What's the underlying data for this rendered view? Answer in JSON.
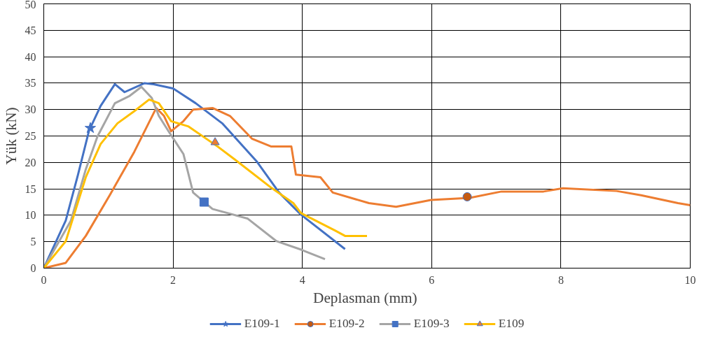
{
  "chart_data": {
    "type": "line",
    "xlabel": "Deplasman  (mm)",
    "ylabel": "Yük (kN)",
    "xlim": [
      0,
      10
    ],
    "ylim": [
      0,
      50
    ],
    "xticks": [
      0,
      2,
      4,
      6,
      8,
      10
    ],
    "yticks": [
      0,
      5,
      10,
      15,
      20,
      25,
      30,
      35,
      40,
      45,
      50
    ],
    "grid": true,
    "legend": "bottom",
    "marker": "none",
    "series": [
      {
        "name": "E109-1",
        "color": "#4472c4",
        "x": [
          0,
          0.34,
          0.53,
          0.7,
          0.88,
          1.1,
          1.25,
          1.56,
          1.7,
          2.0,
          2.35,
          2.76,
          3.3,
          3.64,
          3.98,
          4.66
        ],
        "values": [
          0,
          9,
          17.7,
          26,
          30.7,
          34.8,
          33.3,
          35,
          34.8,
          34,
          31.2,
          27.4,
          20.1,
          14.3,
          10.1,
          3.6
        ]
      },
      {
        "name": "E109-2",
        "color": "#ed7d31",
        "x": [
          0,
          0.34,
          0.65,
          1.02,
          1.4,
          1.74,
          1.86,
          1.97,
          2.16,
          2.31,
          2.61,
          2.88,
          3.22,
          3.52,
          3.83,
          3.9,
          4.28,
          4.47,
          5.03,
          5.45,
          5.99,
          6.59,
          7.08,
          7.73,
          8.03,
          8.86,
          9.24,
          9.81,
          10
        ],
        "values": [
          0,
          1,
          6.1,
          13.8,
          22,
          30.3,
          28.8,
          25.9,
          27.8,
          30,
          30.3,
          28.8,
          24.5,
          23,
          23,
          17.7,
          17.2,
          14.3,
          12.3,
          11.6,
          12.9,
          13.3,
          14.5,
          14.5,
          15.1,
          14.6,
          13.8,
          12.3,
          11.9
        ]
      },
      {
        "name": "E109-3",
        "color": "#a5a5a5",
        "x": [
          0,
          0.42,
          0.65,
          0.83,
          1.1,
          1.33,
          1.51,
          1.67,
          1.78,
          1.93,
          2.16,
          2.31,
          2.61,
          3.15,
          3.6,
          3.98,
          4.35
        ],
        "values": [
          0,
          9,
          18.7,
          24.9,
          31.2,
          32.6,
          34.3,
          32.2,
          28.8,
          25.9,
          21.6,
          14.3,
          11.2,
          9.4,
          5.1,
          3.5,
          1.7
        ]
      },
      {
        "name": "E109",
        "color": "#ffc000",
        "x": [
          0,
          0.34,
          0.65,
          0.88,
          1.14,
          1.4,
          1.63,
          1.78,
          1.97,
          2.24,
          2.69,
          2.95,
          3.52,
          3.86,
          3.98,
          4.51,
          4.66,
          5.0
        ],
        "values": [
          0,
          5.1,
          17.2,
          23.5,
          27.4,
          29.7,
          31.9,
          31.2,
          27.8,
          26.8,
          23,
          20.6,
          15.2,
          12.3,
          10.4,
          7.1,
          6.1,
          6.1
        ]
      },
      {
        "type": "scatter",
        "marker": "star",
        "color": "#4472c4",
        "x": [
          0.72
        ],
        "values": [
          26.5
        ]
      },
      {
        "type": "scatter",
        "marker": "circle",
        "color": "#c55a11",
        "x": [
          6.55
        ],
        "values": [
          13.5
        ]
      },
      {
        "type": "scatter",
        "marker": "square",
        "color": "#4472c4",
        "x": [
          2.48
        ],
        "values": [
          12.5
        ]
      },
      {
        "type": "scatter",
        "marker": "triangle",
        "color": "#ed7d31",
        "x": [
          2.65
        ],
        "values": [
          23.8
        ]
      }
    ]
  }
}
